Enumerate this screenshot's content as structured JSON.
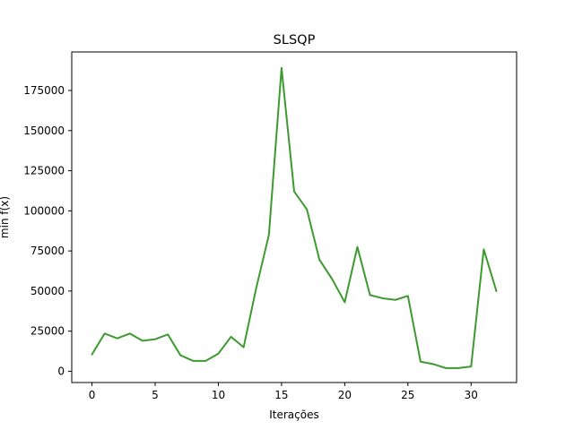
{
  "chart_data": {
    "type": "line",
    "title": "SLSQP",
    "xlabel": "Iterações",
    "ylabel": "min f(x)",
    "xlim": [
      -1.6,
      33.6
    ],
    "ylim": [
      -7000,
      199000
    ],
    "xticks": [
      0,
      5,
      10,
      15,
      20,
      25,
      30
    ],
    "xtick_labels": [
      "0",
      "5",
      "10",
      "15",
      "20",
      "25",
      "30"
    ],
    "yticks": [
      0,
      25000,
      50000,
      75000,
      100000,
      125000,
      150000,
      175000
    ],
    "ytick_labels": [
      "0",
      "25000",
      "50000",
      "75000",
      "100000",
      "125000",
      "150000",
      "175000"
    ],
    "grid": false,
    "legend": "none",
    "series": [
      {
        "color": "#3d9a2f",
        "x": [
          0,
          1,
          2,
          3,
          4,
          5,
          6,
          7,
          8,
          9,
          10,
          11,
          12,
          13,
          14,
          15,
          16,
          17,
          18,
          19,
          20,
          21,
          22,
          23,
          24,
          25,
          26,
          27,
          28,
          29,
          30,
          31,
          32
        ],
        "values": [
          10500,
          23500,
          20500,
          23500,
          19000,
          20000,
          23000,
          10000,
          6500,
          6500,
          11000,
          21500,
          15000,
          52000,
          85000,
          189000,
          112000,
          101000,
          69500,
          57500,
          43000,
          77500,
          47500,
          45500,
          44500,
          47000,
          6000,
          4500,
          2000,
          2000,
          3000,
          76000,
          50000
        ]
      }
    ]
  }
}
